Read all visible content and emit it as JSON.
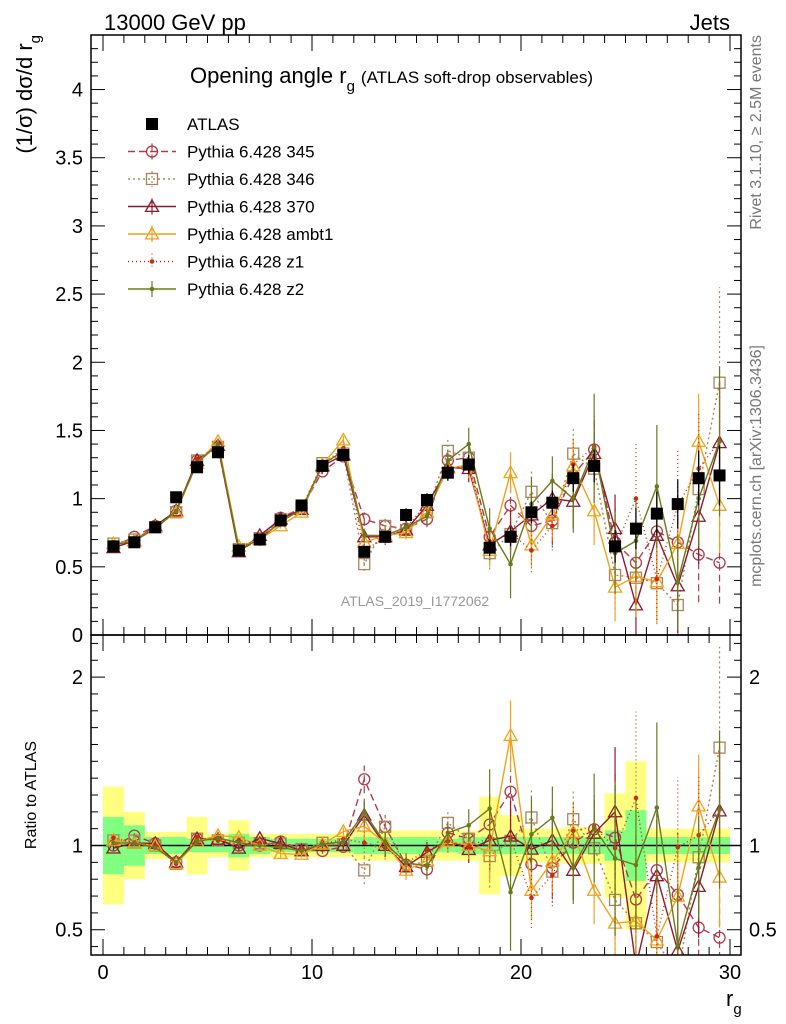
{
  "header": {
    "left": "13000 GeV pp",
    "right": "Jets",
    "side_rivet": "Rivet 3.1.10, ≥ 2.5M events",
    "side_mcplots": "mcplots.cern.ch [arXiv:1306.3436]",
    "watermark": "ATLAS_2019_I1772062"
  },
  "chart_data": {
    "type": "line",
    "title": "Opening angle r",
    "title_sub": "g",
    "title_suffix": "(ATLAS soft-drop observables)",
    "ylabel": "(1/σ) dσ/d r",
    "ylabel_sub": "g",
    "ratio_ylabel": "Ratio to ATLAS",
    "xlabel": "r",
    "xlabel_sub": "g",
    "xlim": [
      0,
      30
    ],
    "ylim": [
      0,
      4.4
    ],
    "ratio_ylim": [
      0.35,
      2.25
    ],
    "x_ticks": [
      "0",
      "10",
      "20",
      "30"
    ],
    "y_ticks": [
      "0",
      "0.5",
      "1",
      "1.5",
      "2",
      "2.5",
      "3",
      "3.5",
      "4"
    ],
    "ratio_ticks": [
      "0.5",
      "1",
      "2"
    ],
    "x": [
      0.5,
      1.5,
      2.5,
      3.5,
      4.5,
      5.5,
      6.5,
      7.5,
      8.5,
      9.5,
      10.5,
      11.5,
      12.5,
      13.5,
      14.5,
      15.5,
      16.5,
      17.5,
      18.5,
      19.5,
      20.5,
      21.5,
      22.5,
      23.5,
      24.5,
      25.5,
      26.5,
      27.5,
      28.5,
      29.5
    ],
    "data": {
      "name": "ATLAS",
      "values": [
        0.65,
        0.68,
        0.79,
        1.01,
        1.23,
        1.34,
        0.62,
        0.7,
        0.84,
        0.95,
        1.24,
        1.32,
        0.61,
        0.72,
        0.88,
        0.99,
        1.19,
        1.25,
        0.64,
        0.72,
        0.9,
        0.97,
        1.15,
        1.24,
        0.65,
        0.78,
        0.89,
        0.96,
        1.15,
        1.17
      ],
      "errors": [
        0.02,
        0.02,
        0.02,
        0.03,
        0.03,
        0.03,
        0.02,
        0.02,
        0.03,
        0.03,
        0.03,
        0.04,
        0.03,
        0.04,
        0.05,
        0.05,
        0.06,
        0.07,
        0.06,
        0.07,
        0.08,
        0.09,
        0.1,
        0.12,
        0.12,
        0.15,
        0.16,
        0.18,
        0.2,
        0.22
      ]
    },
    "ratio_bands": {
      "stat": [
        0.17,
        0.12,
        0.05,
        0.05,
        0.04,
        0.04,
        0.07,
        0.05,
        0.04,
        0.04,
        0.04,
        0.04,
        0.05,
        0.05,
        0.05,
        0.05,
        0.04,
        0.05,
        0.05,
        0.05,
        0.05,
        0.05,
        0.05,
        0.05,
        0.09,
        0.21,
        0.05,
        0.05,
        0.05,
        0.05
      ],
      "total": [
        0.35,
        0.2,
        0.08,
        0.08,
        0.17,
        0.07,
        0.15,
        0.07,
        0.07,
        0.07,
        0.07,
        0.07,
        0.09,
        0.09,
        0.09,
        0.09,
        0.09,
        0.09,
        0.29,
        0.18,
        0.1,
        0.1,
        0.11,
        0.11,
        0.31,
        0.5,
        0.1,
        0.1,
        0.1,
        0.1
      ]
    },
    "series": [
      {
        "name": "Pythia 6.428 345",
        "color": "#b13b48",
        "dash": "7,4",
        "marker": "circle",
        "values": [
          0.65,
          0.72,
          0.8,
          0.91,
          1.28,
          1.38,
          0.62,
          0.7,
          0.86,
          0.93,
          1.2,
          1.31,
          0.85,
          0.8,
          0.78,
          0.85,
          1.28,
          1.3,
          0.72,
          0.95,
          0.8,
          0.84,
          1.17,
          1.36,
          0.68,
          0.53,
          0.76,
          0.68,
          0.59,
          0.53
        ],
        "errors": [
          0.01,
          0.01,
          0.01,
          0.01,
          0.02,
          0.02,
          0.01,
          0.01,
          0.02,
          0.02,
          0.02,
          0.03,
          0.05,
          0.05,
          0.05,
          0.06,
          0.08,
          0.1,
          0.12,
          0.15,
          0.16,
          0.18,
          0.2,
          0.25,
          0.25,
          0.3,
          0.3,
          0.35,
          0.35,
          0.3
        ]
      },
      {
        "name": "Pythia 6.428 346",
        "color": "#a7855a",
        "dash": "2,3",
        "marker": "square",
        "values": [
          0.67,
          0.7,
          0.79,
          0.9,
          1.28,
          1.38,
          0.63,
          0.71,
          0.85,
          0.93,
          1.26,
          1.33,
          0.52,
          0.8,
          0.77,
          0.9,
          1.35,
          1.3,
          0.6,
          0.74,
          1.05,
          0.82,
          1.33,
          1.22,
          0.44,
          0.42,
          0.38,
          0.22,
          1.07,
          1.85
        ],
        "errors": [
          0.01,
          0.01,
          0.01,
          0.01,
          0.02,
          0.02,
          0.01,
          0.01,
          0.02,
          0.02,
          0.02,
          0.03,
          0.05,
          0.05,
          0.05,
          0.06,
          0.08,
          0.1,
          0.12,
          0.15,
          0.16,
          0.18,
          0.2,
          0.25,
          0.25,
          0.3,
          0.3,
          0.35,
          0.45,
          0.7
        ]
      },
      {
        "name": "Pythia 6.428 370",
        "color": "#8b1a2f",
        "dash": "",
        "marker": "triangle",
        "values": [
          0.64,
          0.69,
          0.8,
          0.91,
          1.28,
          1.39,
          0.61,
          0.73,
          0.85,
          0.92,
          1.24,
          1.32,
          0.72,
          0.72,
          0.77,
          0.95,
          1.23,
          1.22,
          0.66,
          0.76,
          0.88,
          1.0,
          0.98,
          1.33,
          0.78,
          0.22,
          0.73,
          0.36,
          0.87,
          1.41
        ],
        "errors": [
          0.01,
          0.01,
          0.01,
          0.01,
          0.02,
          0.02,
          0.01,
          0.01,
          0.02,
          0.02,
          0.02,
          0.03,
          0.05,
          0.05,
          0.05,
          0.06,
          0.08,
          0.1,
          0.12,
          0.15,
          0.16,
          0.18,
          0.2,
          0.25,
          0.25,
          0.3,
          0.3,
          0.35,
          0.35,
          0.45
        ]
      },
      {
        "name": "Pythia 6.428 ambt1",
        "color": "#f0a21a",
        "dash": "",
        "marker": "triangle",
        "values": [
          0.67,
          0.69,
          0.79,
          0.9,
          1.26,
          1.42,
          0.65,
          0.7,
          0.8,
          0.9,
          1.25,
          1.43,
          0.68,
          0.73,
          0.75,
          0.9,
          1.22,
          1.25,
          0.62,
          1.19,
          0.66,
          0.88,
          1.24,
          0.91,
          0.35,
          0.43,
          0.39,
          0.67,
          1.42,
          0.95
        ],
        "errors": [
          0.01,
          0.01,
          0.01,
          0.01,
          0.02,
          0.02,
          0.01,
          0.01,
          0.02,
          0.02,
          0.02,
          0.03,
          0.05,
          0.05,
          0.05,
          0.06,
          0.08,
          0.1,
          0.12,
          0.15,
          0.16,
          0.18,
          0.2,
          0.25,
          0.25,
          0.3,
          0.3,
          0.35,
          0.35,
          0.35
        ]
      },
      {
        "name": "Pythia 6.428 z1",
        "color": "#cc2a10",
        "dash": "1,3",
        "marker": "dot",
        "values": [
          0.68,
          0.69,
          0.79,
          0.9,
          1.29,
          1.38,
          0.64,
          0.71,
          0.84,
          0.93,
          1.25,
          1.37,
          0.62,
          0.71,
          0.79,
          0.96,
          1.22,
          1.24,
          0.67,
          0.75,
          0.62,
          0.8,
          1.25,
          1.38,
          0.64,
          1.0,
          0.41,
          0.95,
          1.22,
          1.42
        ],
        "errors": [
          0.01,
          0.01,
          0.01,
          0.01,
          0.02,
          0.02,
          0.01,
          0.01,
          0.02,
          0.02,
          0.02,
          0.03,
          0.05,
          0.05,
          0.05,
          0.06,
          0.08,
          0.1,
          0.12,
          0.15,
          0.16,
          0.18,
          0.2,
          0.25,
          0.3,
          0.4,
          0.3,
          0.4,
          0.4,
          0.5
        ]
      },
      {
        "name": "Pythia 6.428 z2",
        "color": "#6b7a1c",
        "dash": "",
        "marker": "dot",
        "values": [
          0.66,
          0.69,
          0.78,
          0.91,
          1.26,
          1.4,
          0.63,
          0.7,
          0.83,
          0.92,
          1.25,
          1.35,
          0.73,
          0.73,
          0.79,
          0.87,
          1.28,
          1.4,
          0.78,
          0.52,
          0.96,
          1.13,
          1.0,
          1.37,
          0.6,
          0.69,
          1.09,
          0.39,
          1.0,
          1.42
        ],
        "errors": [
          0.01,
          0.01,
          0.01,
          0.01,
          0.02,
          0.02,
          0.01,
          0.01,
          0.02,
          0.02,
          0.02,
          0.03,
          0.05,
          0.05,
          0.05,
          0.06,
          0.08,
          0.12,
          0.15,
          0.25,
          0.2,
          0.18,
          0.25,
          0.4,
          0.3,
          0.3,
          0.45,
          0.35,
          0.35,
          0.55
        ]
      }
    ]
  }
}
